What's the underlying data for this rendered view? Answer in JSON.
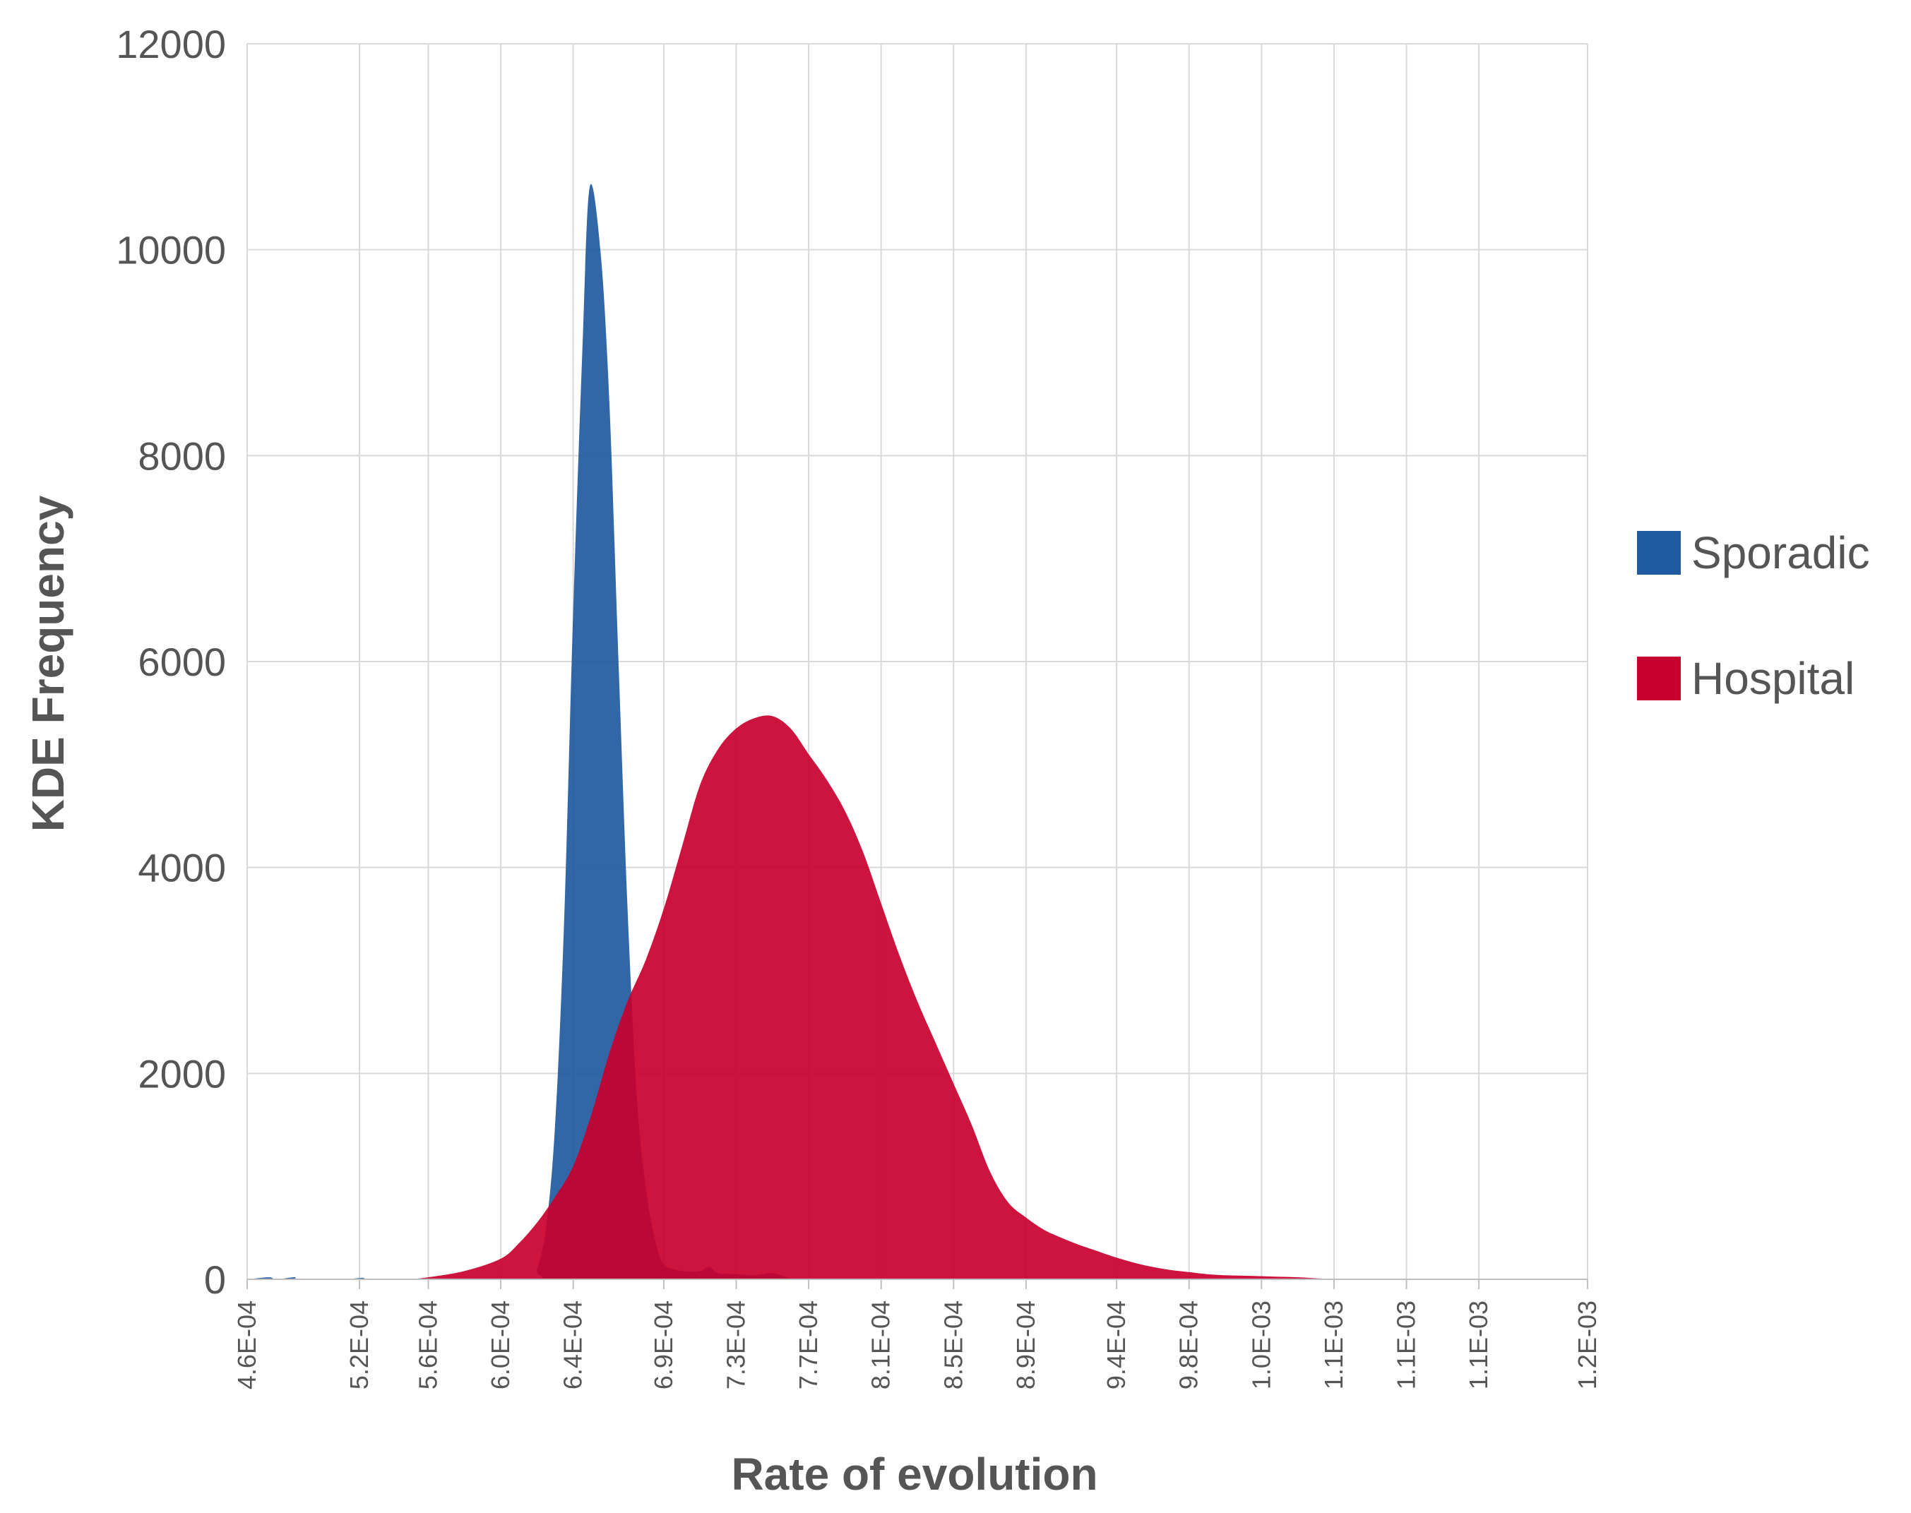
{
  "chart_data": {
    "type": "area",
    "title": "",
    "xlabel": "Rate of evolution",
    "ylabel": "KDE Frequency",
    "xlim": [
      0.00046,
      0.0012
    ],
    "ylim": [
      0,
      12000
    ],
    "yticks": [
      0,
      2000,
      4000,
      6000,
      8000,
      10000,
      12000
    ],
    "xticks": [
      {
        "value": 0.00046,
        "label": "4.6E-04"
      },
      {
        "value": 0.000522,
        "label": "5.2E-04"
      },
      {
        "value": 0.00056,
        "label": "5.6E-04"
      },
      {
        "value": 0.0006,
        "label": "6.0E-04"
      },
      {
        "value": 0.00064,
        "label": "6.4E-04"
      },
      {
        "value": 0.00069,
        "label": "6.9E-04"
      },
      {
        "value": 0.00073,
        "label": "7.3E-04"
      },
      {
        "value": 0.00077,
        "label": "7.7E-04"
      },
      {
        "value": 0.00081,
        "label": "8.1E-04"
      },
      {
        "value": 0.00085,
        "label": "8.5E-04"
      },
      {
        "value": 0.00089,
        "label": "8.9E-04"
      },
      {
        "value": 0.00094,
        "label": "9.4E-04"
      },
      {
        "value": 0.00098,
        "label": "9.8E-04"
      },
      {
        "value": 0.00102,
        "label": "1.0E-03"
      },
      {
        "value": 0.00106,
        "label": "1.1E-03"
      },
      {
        "value": 0.0011,
        "label": "1.1E-03"
      },
      {
        "value": 0.00114,
        "label": "1.1E-03"
      },
      {
        "value": 0.0012,
        "label": "1.2E-03"
      }
    ],
    "grid": true,
    "legend_position": "right",
    "series": [
      {
        "name": "Sporadic",
        "color": "#1f5aa0",
        "points": [
          [
            0.00046,
            0
          ],
          [
            0.000472,
            20
          ],
          [
            0.000476,
            0
          ],
          [
            0.000486,
            20
          ],
          [
            0.00049,
            0
          ],
          [
            0.000522,
            0
          ],
          [
            0.000524,
            15
          ],
          [
            0.000526,
            0
          ],
          [
            0.000615,
            0
          ],
          [
            0.00062,
            100
          ],
          [
            0.000625,
            500
          ],
          [
            0.00063,
            1500
          ],
          [
            0.000635,
            3500
          ],
          [
            0.00064,
            6500
          ],
          [
            0.000645,
            9000
          ],
          [
            0.000649,
            10600
          ],
          [
            0.000655,
            10000
          ],
          [
            0.00066,
            8500
          ],
          [
            0.000665,
            6000
          ],
          [
            0.00067,
            3600
          ],
          [
            0.000675,
            1800
          ],
          [
            0.00068,
            900
          ],
          [
            0.000685,
            400
          ],
          [
            0.00069,
            150
          ],
          [
            0.0007,
            80
          ],
          [
            0.00071,
            80
          ],
          [
            0.000715,
            120
          ],
          [
            0.00072,
            60
          ],
          [
            0.00073,
            50
          ],
          [
            0.00074,
            40
          ],
          [
            0.00075,
            60
          ],
          [
            0.00076,
            10
          ],
          [
            0.00077,
            0
          ]
        ]
      },
      {
        "name": "Hospital",
        "color": "#c8002e",
        "points": [
          [
            0.00055,
            0
          ],
          [
            0.00056,
            20
          ],
          [
            0.00058,
            80
          ],
          [
            0.0006,
            200
          ],
          [
            0.00061,
            350
          ],
          [
            0.00062,
            550
          ],
          [
            0.00063,
            800
          ],
          [
            0.00064,
            1100
          ],
          [
            0.00065,
            1600
          ],
          [
            0.00066,
            2200
          ],
          [
            0.00067,
            2700
          ],
          [
            0.00068,
            3100
          ],
          [
            0.00069,
            3600
          ],
          [
            0.0007,
            4200
          ],
          [
            0.00071,
            4800
          ],
          [
            0.00072,
            5150
          ],
          [
            0.00073,
            5350
          ],
          [
            0.00074,
            5450
          ],
          [
            0.00075,
            5470
          ],
          [
            0.00076,
            5350
          ],
          [
            0.00077,
            5100
          ],
          [
            0.00078,
            4850
          ],
          [
            0.00079,
            4550
          ],
          [
            0.0008,
            4150
          ],
          [
            0.00081,
            3650
          ],
          [
            0.00082,
            3150
          ],
          [
            0.00083,
            2700
          ],
          [
            0.00084,
            2300
          ],
          [
            0.00085,
            1900
          ],
          [
            0.00086,
            1500
          ],
          [
            0.00087,
            1050
          ],
          [
            0.00088,
            750
          ],
          [
            0.00089,
            600
          ],
          [
            0.0009,
            480
          ],
          [
            0.00091,
            400
          ],
          [
            0.00092,
            330
          ],
          [
            0.00093,
            270
          ],
          [
            0.00094,
            210
          ],
          [
            0.00095,
            160
          ],
          [
            0.00096,
            120
          ],
          [
            0.00097,
            90
          ],
          [
            0.00098,
            70
          ],
          [
            0.00099,
            50
          ],
          [
            0.001,
            40
          ],
          [
            0.00101,
            35
          ],
          [
            0.00102,
            30
          ],
          [
            0.00103,
            25
          ],
          [
            0.00104,
            20
          ],
          [
            0.00105,
            10
          ],
          [
            0.00106,
            0
          ]
        ]
      }
    ]
  }
}
